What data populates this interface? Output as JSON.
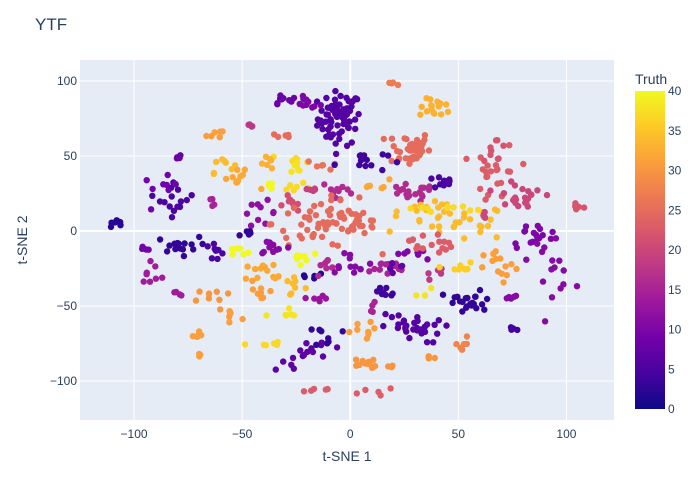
{
  "chart_data": {
    "type": "scatter",
    "title": "YTF",
    "xlabel": "t-SNE 1",
    "ylabel": "t-SNE 2",
    "xlim": [
      -125,
      122
    ],
    "ylim": [
      -126,
      114
    ],
    "xticks": [
      -100,
      -50,
      0,
      50,
      100
    ],
    "yticks": [
      -100,
      -50,
      0,
      50,
      100
    ],
    "xtick_labels": [
      "−100",
      "−50",
      "0",
      "50",
      "100"
    ],
    "ytick_labels": [
      "−100",
      "−50",
      "0",
      "50",
      "100"
    ],
    "grid": true,
    "plot_background": "#e5ecf6",
    "colorbar": {
      "title": "Truth",
      "range": [
        0,
        40
      ],
      "ticks": [
        0,
        5,
        10,
        15,
        20,
        25,
        30,
        35,
        40
      ],
      "tick_labels": [
        "0",
        "5",
        "10",
        "15",
        "20",
        "25",
        "30",
        "35",
        "40"
      ],
      "colorscale": [
        "#0d0887",
        "#46039f",
        "#7201a8",
        "#9c179e",
        "#bd3786",
        "#d8576b",
        "#ed7953",
        "#fb9f3a",
        "#fdca26",
        "#f0f921"
      ]
    },
    "clusters": [
      {
        "x": -5,
        "y": 75,
        "sx": 5,
        "sy": 9,
        "n": 70,
        "v": 6
      },
      {
        "x": -20,
        "y": 85,
        "sx": 3,
        "sy": 2,
        "n": 10,
        "v": 10
      },
      {
        "x": -32,
        "y": 87,
        "sx": 4,
        "sy": 2,
        "n": 10,
        "v": 8
      },
      {
        "x": 20,
        "y": 98,
        "sx": 2,
        "sy": 1,
        "n": 4,
        "v": 27
      },
      {
        "x": 40,
        "y": 82,
        "sx": 4,
        "sy": 3,
        "n": 16,
        "v": 33
      },
      {
        "x": 27,
        "y": 55,
        "sx": 5,
        "sy": 6,
        "n": 40,
        "v": 25
      },
      {
        "x": -45,
        "y": 70,
        "sx": 2,
        "sy": 1,
        "n": 4,
        "v": 18
      },
      {
        "x": -60,
        "y": 65,
        "sx": 3,
        "sy": 2,
        "n": 6,
        "v": 31
      },
      {
        "x": -30,
        "y": 64,
        "sx": 3,
        "sy": 1,
        "n": 5,
        "v": 25
      },
      {
        "x": -80,
        "y": 49,
        "sx": 1,
        "sy": 1,
        "n": 4,
        "v": 8
      },
      {
        "x": -25,
        "y": 46,
        "sx": 3,
        "sy": 3,
        "n": 8,
        "v": 37
      },
      {
        "x": -38,
        "y": 48,
        "sx": 2,
        "sy": 3,
        "n": 6,
        "v": 33
      },
      {
        "x": -60,
        "y": 45,
        "sx": 3,
        "sy": 3,
        "n": 8,
        "v": 34
      },
      {
        "x": -52,
        "y": 34,
        "sx": 4,
        "sy": 3,
        "n": 10,
        "v": 32
      },
      {
        "x": -12,
        "y": 44,
        "sx": 4,
        "sy": 2,
        "n": 6,
        "v": 26
      },
      {
        "x": -25,
        "y": 30,
        "sx": 3,
        "sy": 3,
        "n": 6,
        "v": 37
      },
      {
        "x": 5,
        "y": 47,
        "sx": 6,
        "sy": 4,
        "n": 14,
        "v": 4
      },
      {
        "x": -36,
        "y": 30,
        "sx": 2,
        "sy": 2,
        "n": 5,
        "v": 40
      },
      {
        "x": -25,
        "y": 42,
        "sx": 3,
        "sy": 2,
        "n": 5,
        "v": 38
      },
      {
        "x": 12,
        "y": 31,
        "sx": 3,
        "sy": 2,
        "n": 6,
        "v": 32
      },
      {
        "x": -80,
        "y": 22,
        "sx": 4,
        "sy": 6,
        "n": 16,
        "v": 5
      },
      {
        "x": -88,
        "y": 28,
        "sx": 4,
        "sy": 4,
        "n": 8,
        "v": 9
      },
      {
        "x": -17,
        "y": 28,
        "sx": 3,
        "sy": 1,
        "n": 5,
        "v": 19
      },
      {
        "x": -5,
        "y": 26,
        "sx": 4,
        "sy": 4,
        "n": 10,
        "v": 16
      },
      {
        "x": -63,
        "y": 22,
        "sx": 2,
        "sy": 2,
        "n": 4,
        "v": 15
      },
      {
        "x": -42,
        "y": 12,
        "sx": 4,
        "sy": 4,
        "n": 10,
        "v": 12
      },
      {
        "x": -27,
        "y": 18,
        "sx": 3,
        "sy": 3,
        "n": 8,
        "v": 21
      },
      {
        "x": -12,
        "y": 5,
        "sx": 12,
        "sy": 8,
        "n": 60,
        "v": 25
      },
      {
        "x": 6,
        "y": 6,
        "sx": 4,
        "sy": 5,
        "n": 12,
        "v": 25
      },
      {
        "x": 27,
        "y": 25,
        "sx": 6,
        "sy": 3,
        "n": 20,
        "v": 16
      },
      {
        "x": 43,
        "y": 32,
        "sx": 4,
        "sy": 2,
        "n": 10,
        "v": 5
      },
      {
        "x": 50,
        "y": 5,
        "sx": 12,
        "sy": 6,
        "n": 30,
        "v": 34
      },
      {
        "x": 37,
        "y": 15,
        "sx": 7,
        "sy": 2,
        "n": 10,
        "v": 34
      },
      {
        "x": 62,
        "y": 10,
        "sx": 1,
        "sy": 2,
        "n": 4,
        "v": 20
      },
      {
        "x": 68,
        "y": 38,
        "sx": 5,
        "sy": 10,
        "n": 22,
        "v": 23
      },
      {
        "x": 76,
        "y": 28,
        "sx": 5,
        "sy": 5,
        "n": 12,
        "v": 20
      },
      {
        "x": 83,
        "y": 20,
        "sx": 6,
        "sy": 3,
        "n": 10,
        "v": 20
      },
      {
        "x": 67,
        "y": 55,
        "sx": 3,
        "sy": 4,
        "n": 8,
        "v": 22
      },
      {
        "x": 85,
        "y": -3,
        "sx": 6,
        "sy": 4,
        "n": 16,
        "v": 10
      },
      {
        "x": 93,
        "y": -20,
        "sx": 5,
        "sy": 10,
        "n": 16,
        "v": 11
      },
      {
        "x": 105,
        "y": 14,
        "sx": 1,
        "sy": 2,
        "n": 5,
        "v": 22
      },
      {
        "x": -109,
        "y": 5,
        "sx": 2,
        "sy": 2,
        "n": 8,
        "v": 2
      },
      {
        "x": -95,
        "y": -12,
        "sx": 2,
        "sy": 1,
        "n": 4,
        "v": 9
      },
      {
        "x": -92,
        "y": -27,
        "sx": 3,
        "sy": 4,
        "n": 8,
        "v": 14
      },
      {
        "x": -80,
        "y": -10,
        "sx": 5,
        "sy": 3,
        "n": 16,
        "v": 3
      },
      {
        "x": -63,
        "y": -14,
        "sx": 3,
        "sy": 4,
        "n": 8,
        "v": 5
      },
      {
        "x": -53,
        "y": -15,
        "sx": 4,
        "sy": 2,
        "n": 6,
        "v": 40
      },
      {
        "x": -47,
        "y": -3,
        "sx": 2,
        "sy": 3,
        "n": 5,
        "v": 3
      },
      {
        "x": -80,
        "y": -42,
        "sx": 1,
        "sy": 1,
        "n": 4,
        "v": 14
      },
      {
        "x": -63,
        "y": -45,
        "sx": 4,
        "sy": 4,
        "n": 8,
        "v": 30
      },
      {
        "x": -70,
        "y": -70,
        "sx": 3,
        "sy": 3,
        "n": 6,
        "v": 31
      },
      {
        "x": -55,
        "y": -57,
        "sx": 3,
        "sy": 4,
        "n": 6,
        "v": 31
      },
      {
        "x": -42,
        "y": -40,
        "sx": 3,
        "sy": 8,
        "n": 8,
        "v": 31
      },
      {
        "x": -38,
        "y": -28,
        "sx": 6,
        "sy": 4,
        "n": 12,
        "v": 32
      },
      {
        "x": -27,
        "y": -35,
        "sx": 3,
        "sy": 5,
        "n": 8,
        "v": 34
      },
      {
        "x": -35,
        "y": -10,
        "sx": 4,
        "sy": 3,
        "n": 10,
        "v": 11
      },
      {
        "x": -22,
        "y": -17,
        "sx": 5,
        "sy": 2,
        "n": 8,
        "v": 40
      },
      {
        "x": -18,
        "y": -30,
        "sx": 3,
        "sy": 2,
        "n": 5,
        "v": 2
      },
      {
        "x": -10,
        "y": -25,
        "sx": 4,
        "sy": 3,
        "n": 8,
        "v": 16
      },
      {
        "x": -15,
        "y": -45,
        "sx": 3,
        "sy": 3,
        "n": 6,
        "v": 13
      },
      {
        "x": -30,
        "y": -57,
        "sx": 3,
        "sy": 3,
        "n": 6,
        "v": 38
      },
      {
        "x": -40,
        "y": -75,
        "sx": 4,
        "sy": 1,
        "n": 6,
        "v": 37
      },
      {
        "x": -18,
        "y": -78,
        "sx": 5,
        "sy": 4,
        "n": 12,
        "v": 7
      },
      {
        "x": -27,
        "y": -90,
        "sx": 3,
        "sy": 2,
        "n": 4,
        "v": 7
      },
      {
        "x": -10,
        "y": -70,
        "sx": 3,
        "sy": 4,
        "n": 8,
        "v": 3
      },
      {
        "x": 0,
        "y": -20,
        "sx": 5,
        "sy": 4,
        "n": 12,
        "v": 11
      },
      {
        "x": 15,
        "y": -25,
        "sx": 6,
        "sy": 3,
        "n": 14,
        "v": 15
      },
      {
        "x": 15,
        "y": -40,
        "sx": 4,
        "sy": 3,
        "n": 8,
        "v": 4
      },
      {
        "x": 10,
        "y": -52,
        "sx": 2,
        "sy": 2,
        "n": 4,
        "v": 15
      },
      {
        "x": 3,
        "y": -66,
        "sx": 4,
        "sy": 3,
        "n": 8,
        "v": 31
      },
      {
        "x": 28,
        "y": -65,
        "sx": 7,
        "sy": 5,
        "n": 30,
        "v": 6
      },
      {
        "x": 33,
        "y": -40,
        "sx": 2,
        "sy": 2,
        "n": 4,
        "v": 38
      },
      {
        "x": 20,
        "y": -25,
        "sx": 3,
        "sy": 2,
        "n": 5,
        "v": 7
      },
      {
        "x": 30,
        "y": -15,
        "sx": 4,
        "sy": 3,
        "n": 8,
        "v": 10
      },
      {
        "x": 37,
        "y": -8,
        "sx": 5,
        "sy": 4,
        "n": 16,
        "v": 23
      },
      {
        "x": 38,
        "y": -28,
        "sx": 3,
        "sy": 2,
        "n": 5,
        "v": 18
      },
      {
        "x": 50,
        "y": -25,
        "sx": 4,
        "sy": 2,
        "n": 8,
        "v": 36
      },
      {
        "x": 55,
        "y": -48,
        "sx": 6,
        "sy": 4,
        "n": 24,
        "v": 3
      },
      {
        "x": 70,
        "y": -25,
        "sx": 4,
        "sy": 6,
        "n": 14,
        "v": 31
      },
      {
        "x": 75,
        "y": -45,
        "sx": 2,
        "sy": 1,
        "n": 5,
        "v": 11
      },
      {
        "x": 75,
        "y": -65,
        "sx": 1,
        "sy": 1,
        "n": 4,
        "v": 4
      },
      {
        "x": 52,
        "y": -77,
        "sx": 2,
        "sy": 4,
        "n": 6,
        "v": 28
      },
      {
        "x": 38,
        "y": -85,
        "sx": 2,
        "sy": 1,
        "n": 4,
        "v": 30
      },
      {
        "x": 10,
        "y": -88,
        "sx": 7,
        "sy": 2,
        "n": 16,
        "v": 30
      },
      {
        "x": -15,
        "y": -106,
        "sx": 4,
        "sy": 1,
        "n": 5,
        "v": 23
      },
      {
        "x": 12,
        "y": -107,
        "sx": 4,
        "sy": 1,
        "n": 5,
        "v": 23
      },
      {
        "x": 42,
        "y": 15,
        "sx": 8,
        "sy": 1,
        "n": 10,
        "v": 37
      },
      {
        "x": -70,
        "y": -83,
        "sx": 1,
        "sy": 1,
        "n": 3,
        "v": 31
      }
    ]
  }
}
